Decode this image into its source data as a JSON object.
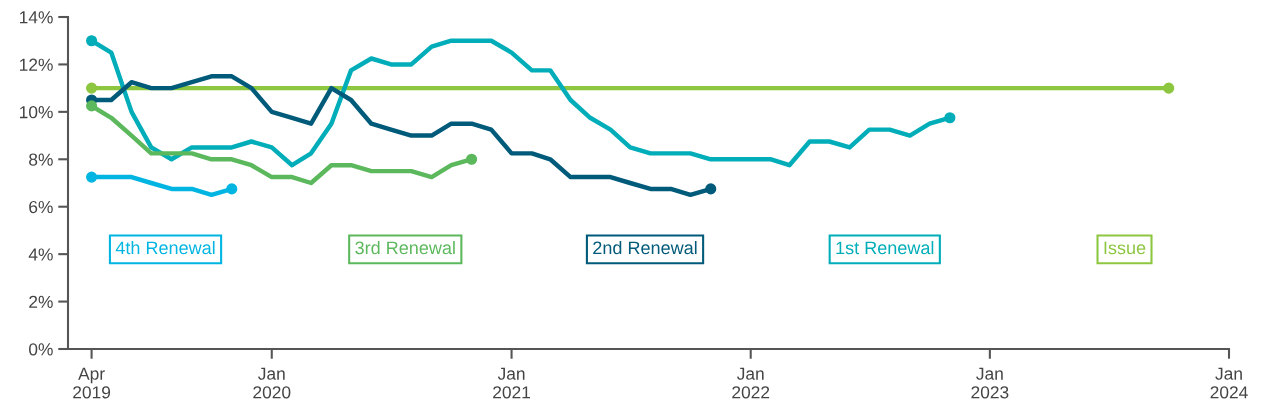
{
  "chart_data": {
    "type": "line",
    "xlim": [
      "2019-02-24",
      "2024-01"
    ],
    "xticks": [
      {
        "value": "2019-04",
        "label": "Apr\n2019"
      },
      {
        "value": "2020-01",
        "label": "Jan\n2020"
      },
      {
        "value": "2021-01",
        "label": "Jan\n2021"
      },
      {
        "value": "2022-01",
        "label": "Jan\n2022"
      },
      {
        "value": "2023-01",
        "label": "Jan\n2023"
      },
      {
        "value": "2024-01",
        "label": "Jan\n2024"
      }
    ],
    "ylim": [
      0,
      14
    ],
    "yticks": [
      {
        "value": 0,
        "label": "0%"
      },
      {
        "value": 2,
        "label": "2%"
      },
      {
        "value": 4,
        "label": "4%"
      },
      {
        "value": 6,
        "label": "6%"
      },
      {
        "value": 8,
        "label": "8%"
      },
      {
        "value": 10,
        "label": "10%"
      },
      {
        "value": 12,
        "label": "12%"
      },
      {
        "value": 14,
        "label": "14%"
      }
    ],
    "grid": false,
    "legend": "bottom",
    "line_style": "solid",
    "series": [
      {
        "name": "4th Renewal",
        "color": "#00b5e2",
        "x": [
          "2019-04",
          "2019-05",
          "2019-06",
          "2019-07",
          "2019-08",
          "2019-09",
          "2019-10",
          "2019-11"
        ],
        "values": [
          7.25,
          7.25,
          7.25,
          7.0,
          6.75,
          6.75,
          6.5,
          6.75
        ]
      },
      {
        "name": "3rd Renewal",
        "color": "#5cb85c",
        "x": [
          "2019-04",
          "2019-05",
          "2019-06",
          "2019-07",
          "2019-08",
          "2019-09",
          "2019-10",
          "2019-11",
          "2019-12",
          "2020-01",
          "2020-02",
          "2020-03",
          "2020-04",
          "2020-05",
          "2020-06",
          "2020-07",
          "2020-08",
          "2020-09",
          "2020-10",
          "2020-11"
        ],
        "values": [
          10.25,
          9.75,
          9.0,
          8.25,
          8.25,
          8.25,
          8.0,
          8.0,
          7.75,
          7.25,
          7.25,
          7.0,
          7.75,
          7.75,
          7.5,
          7.5,
          7.5,
          7.25,
          7.75,
          8.0
        ]
      },
      {
        "name": "2nd Renewal",
        "color": "#005a7a",
        "x": [
          "2019-04",
          "2019-05",
          "2019-06",
          "2019-07",
          "2019-08",
          "2019-09",
          "2019-10",
          "2019-11",
          "2019-12",
          "2020-01",
          "2020-02",
          "2020-03",
          "2020-04",
          "2020-05",
          "2020-06",
          "2020-07",
          "2020-08",
          "2020-09",
          "2020-10",
          "2020-11",
          "2020-12",
          "2021-01",
          "2021-02",
          "2021-03",
          "2021-04",
          "2021-05",
          "2021-06",
          "2021-07",
          "2021-08",
          "2021-09",
          "2021-10",
          "2021-11"
        ],
        "values": [
          10.5,
          10.5,
          11.25,
          11.0,
          11.0,
          11.25,
          11.5,
          11.5,
          11.0,
          10.0,
          9.75,
          9.5,
          11.0,
          10.5,
          9.5,
          9.25,
          9.0,
          9.0,
          9.5,
          9.5,
          9.25,
          8.25,
          8.25,
          8.0,
          7.25,
          7.25,
          7.25,
          7.0,
          6.75,
          6.75,
          6.5,
          6.75
        ]
      },
      {
        "name": "1st Renewal",
        "color": "#00adb8",
        "x": [
          "2019-04",
          "2019-05",
          "2019-06",
          "2019-07",
          "2019-08",
          "2019-09",
          "2019-10",
          "2019-11",
          "2019-12",
          "2020-01",
          "2020-02",
          "2020-03",
          "2020-04",
          "2020-05",
          "2020-06",
          "2020-07",
          "2020-08",
          "2020-09",
          "2020-10",
          "2020-11",
          "2020-12",
          "2021-01",
          "2021-02",
          "2021-03",
          "2021-04",
          "2021-05",
          "2021-06",
          "2021-07",
          "2021-08",
          "2021-09",
          "2021-10",
          "2021-11",
          "2021-12",
          "2022-01",
          "2022-02",
          "2022-03",
          "2022-04",
          "2022-05",
          "2022-06",
          "2022-07",
          "2022-08",
          "2022-09",
          "2022-10",
          "2022-11"
        ],
        "values": [
          13.0,
          12.5,
          10.0,
          8.5,
          8.0,
          8.5,
          8.5,
          8.5,
          8.75,
          8.5,
          7.75,
          8.25,
          9.5,
          11.75,
          12.25,
          12.0,
          12.0,
          12.75,
          13.0,
          13.0,
          13.0,
          12.5,
          11.75,
          11.75,
          10.5,
          9.75,
          9.25,
          8.5,
          8.25,
          8.25,
          8.25,
          8.0,
          8.0,
          8.0,
          8.0,
          7.75,
          8.75,
          8.75,
          8.5,
          9.25,
          9.25,
          9.0,
          9.5,
          9.75
        ]
      },
      {
        "name": "Issue",
        "color": "#8dc63f",
        "marker": "circle",
        "x": [
          "2019-04",
          "2023-10"
        ],
        "values": [
          11.0,
          11.0
        ]
      }
    ]
  }
}
